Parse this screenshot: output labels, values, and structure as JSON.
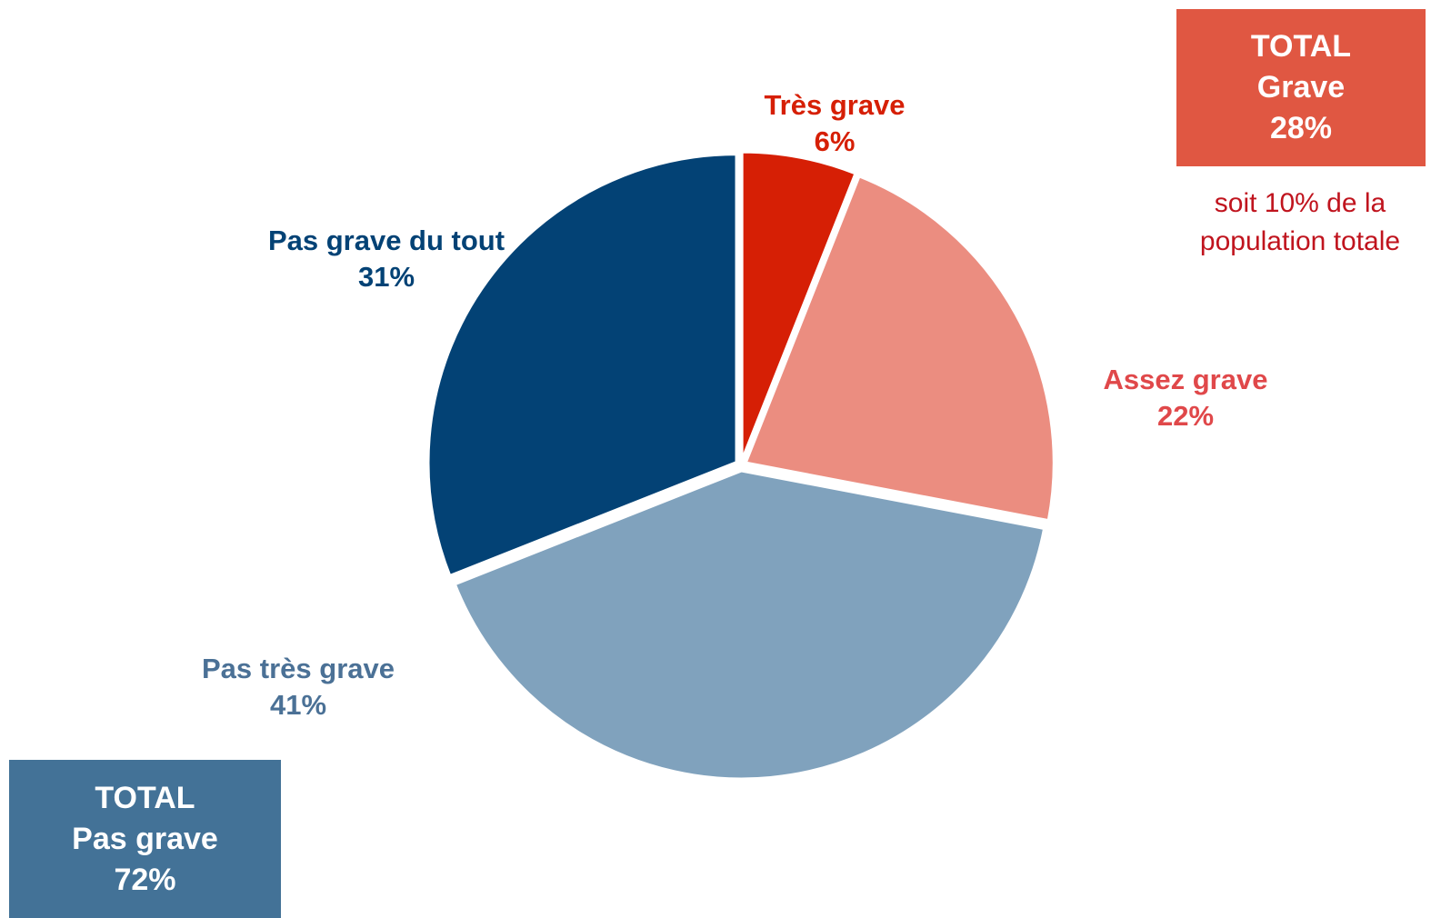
{
  "chart_data": {
    "type": "pie",
    "slices": [
      {
        "label": "Très grave",
        "value": 6,
        "value_label": "6%",
        "color": "#d61f05"
      },
      {
        "label": "Assez grave",
        "value": 22,
        "value_label": "22%",
        "color": "#eb8d80"
      },
      {
        "label": "Pas très grave",
        "value": 41,
        "value_label": "41%",
        "color": "#80a2bd"
      },
      {
        "label": "Pas grave du tout",
        "value": 31,
        "value_label": "31%",
        "color": "#034275"
      }
    ],
    "label_colors": {
      "tres_grave": "#d61f05",
      "assez_grave": "#e0484a",
      "pas_tres_grave": "#4b7196",
      "pas_grave_du_tout": "#034275"
    },
    "start_angle": "12 o'clock",
    "direction": "clockwise"
  },
  "total_grave": {
    "line1": "TOTAL",
    "line2": "Grave",
    "line3": "28%",
    "background": "#e05742",
    "note_line1": "soit 10% de la",
    "note_line2": "population totale",
    "note_color": "#c0141e"
  },
  "total_pas_grave": {
    "line1": "TOTAL",
    "line2": "Pas grave",
    "line3": "72%",
    "background": "#437297"
  }
}
